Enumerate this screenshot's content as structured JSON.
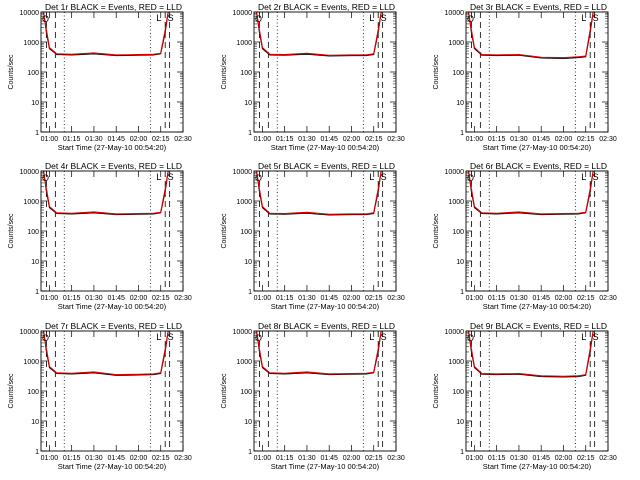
{
  "figure": {
    "background": "#ffffff",
    "axis_color": "#000000"
  },
  "colors": {
    "events": "#000000",
    "lld": "#d40000"
  },
  "x_ticks": [
    "01:00",
    "01:15",
    "01:30",
    "01:45",
    "02:00",
    "02:15",
    "02:30"
  ],
  "y_ticks": [
    "1",
    "10",
    "100",
    "1000",
    "10000"
  ],
  "xlabel": "Start Time (27-May-10 00:54:20)",
  "ylabel": "Counts/sec",
  "saa_labels": {
    "start": "L",
    "end": "S"
  },
  "orbit_marker": "O",
  "chart_data": [
    {
      "type": "line",
      "title": "Det 1r BLACK = Events, RED = LLD",
      "xlabel": "Start Time (27-May-10 00:54:20)",
      "ylabel": "Counts/sec",
      "y_scale": "log",
      "ylim": [
        1,
        10000
      ],
      "xlim": [
        "00:54:20",
        "02:30:00"
      ],
      "x_ticks": [
        "01:00",
        "01:15",
        "01:30",
        "01:45",
        "02:00",
        "02:15",
        "02:30"
      ],
      "y_ticks": [
        1,
        10,
        100,
        1000,
        10000
      ],
      "x": [
        "00:56",
        "00:58",
        "01:00",
        "01:05",
        "01:15",
        "01:30",
        "01:45",
        "02:00",
        "02:10",
        "02:15",
        "02:18",
        "02:20"
      ],
      "series": [
        {
          "name": "Events",
          "color": "#000000",
          "values": [
            10000,
            2000,
            600,
            380,
            370,
            400,
            350,
            360,
            370,
            400,
            2000,
            12000
          ]
        },
        {
          "name": "LLD",
          "color": "#d40000",
          "values": [
            12000,
            2500,
            650,
            400,
            390,
            430,
            370,
            380,
            390,
            420,
            2500,
            12000
          ]
        }
      ],
      "vlines_dashed": [
        "00:58",
        "01:04",
        "02:18",
        "02:21"
      ],
      "vlines_dotted": [
        "01:10",
        "02:08"
      ],
      "grid": false
    },
    {
      "type": "line",
      "title": "Det 2r BLACK = Events, RED = LLD",
      "xlabel": "Start Time (27-May-10 00:54:20)",
      "ylabel": "Counts/sec",
      "y_scale": "log",
      "ylim": [
        1,
        10000
      ],
      "xlim": [
        "00:54:20",
        "02:30:00"
      ],
      "x_ticks": [
        "01:00",
        "01:15",
        "01:30",
        "01:45",
        "02:00",
        "02:15",
        "02:30"
      ],
      "y_ticks": [
        1,
        10,
        100,
        1000,
        10000
      ],
      "x": [
        "00:56",
        "00:58",
        "01:00",
        "01:05",
        "01:15",
        "01:30",
        "01:45",
        "02:00",
        "02:10",
        "02:15",
        "02:18",
        "02:20"
      ],
      "series": [
        {
          "name": "Events",
          "color": "#000000",
          "values": [
            10000,
            2000,
            600,
            370,
            360,
            390,
            340,
            350,
            350,
            380,
            2000,
            12000
          ]
        },
        {
          "name": "LLD",
          "color": "#d40000",
          "values": [
            12000,
            2500,
            650,
            390,
            380,
            420,
            360,
            370,
            370,
            400,
            2500,
            12000
          ]
        }
      ],
      "vlines_dashed": [
        "00:58",
        "01:04",
        "02:18",
        "02:21"
      ],
      "vlines_dotted": [
        "01:10",
        "02:08"
      ],
      "grid": false
    },
    {
      "type": "line",
      "title": "Det 3r BLACK = Events, RED = LLD",
      "xlabel": "Start Time (27-May-10 00:54:20)",
      "ylabel": "Counts/sec",
      "y_scale": "log",
      "ylim": [
        1,
        10000
      ],
      "xlim": [
        "00:54:20",
        "02:30:00"
      ],
      "x_ticks": [
        "01:00",
        "01:15",
        "01:30",
        "01:45",
        "02:00",
        "02:15",
        "02:30"
      ],
      "y_ticks": [
        1,
        10,
        100,
        1000,
        10000
      ],
      "x": [
        "00:56",
        "00:58",
        "01:00",
        "01:05",
        "01:15",
        "01:30",
        "01:45",
        "02:00",
        "02:10",
        "02:15",
        "02:18",
        "02:20"
      ],
      "series": [
        {
          "name": "Events",
          "color": "#000000",
          "values": [
            10000,
            2000,
            600,
            360,
            350,
            360,
            290,
            280,
            300,
            320,
            2000,
            12000
          ]
        },
        {
          "name": "LLD",
          "color": "#d40000",
          "values": [
            12000,
            2500,
            650,
            380,
            370,
            380,
            310,
            300,
            320,
            340,
            2500,
            12000
          ]
        }
      ],
      "vlines_dashed": [
        "00:58",
        "01:04",
        "02:18",
        "02:21"
      ],
      "vlines_dotted": [
        "01:10",
        "02:08"
      ],
      "grid": false
    },
    {
      "type": "line",
      "title": "Det 4r BLACK = Events, RED = LLD",
      "xlabel": "Start Time (27-May-10 00:54:20)",
      "ylabel": "Counts/sec",
      "y_scale": "log",
      "ylim": [
        1,
        10000
      ],
      "xlim": [
        "00:54:20",
        "02:30:00"
      ],
      "x_ticks": [
        "01:00",
        "01:15",
        "01:30",
        "01:45",
        "02:00",
        "02:15",
        "02:30"
      ],
      "y_ticks": [
        1,
        10,
        100,
        1000,
        10000
      ],
      "x": [
        "00:56",
        "00:58",
        "01:00",
        "01:05",
        "01:15",
        "01:30",
        "01:45",
        "02:00",
        "02:10",
        "02:15",
        "02:18",
        "02:20"
      ],
      "series": [
        {
          "name": "Events",
          "color": "#000000",
          "values": [
            10000,
            2000,
            600,
            380,
            370,
            400,
            350,
            360,
            370,
            400,
            2000,
            12000
          ]
        },
        {
          "name": "LLD",
          "color": "#d40000",
          "values": [
            12000,
            2500,
            650,
            400,
            390,
            430,
            370,
            380,
            390,
            420,
            2500,
            12000
          ]
        }
      ],
      "vlines_dashed": [
        "00:58",
        "01:04",
        "02:18",
        "02:21"
      ],
      "vlines_dotted": [
        "01:10",
        "02:08"
      ],
      "grid": false
    },
    {
      "type": "line",
      "title": "Det 5r BLACK = Events, RED = LLD",
      "xlabel": "Start Time (27-May-10 00:54:20)",
      "ylabel": "Counts/sec",
      "y_scale": "log",
      "ylim": [
        1,
        10000
      ],
      "xlim": [
        "00:54:20",
        "02:30:00"
      ],
      "x_ticks": [
        "01:00",
        "01:15",
        "01:30",
        "01:45",
        "02:00",
        "02:15",
        "02:30"
      ],
      "y_ticks": [
        1,
        10,
        100,
        1000,
        10000
      ],
      "x": [
        "00:56",
        "00:58",
        "01:00",
        "01:05",
        "01:15",
        "01:30",
        "01:45",
        "02:00",
        "02:10",
        "02:15",
        "02:18",
        "02:20"
      ],
      "series": [
        {
          "name": "Events",
          "color": "#000000",
          "values": [
            10000,
            2000,
            600,
            370,
            360,
            390,
            340,
            350,
            350,
            380,
            2000,
            12000
          ]
        },
        {
          "name": "LLD",
          "color": "#d40000",
          "values": [
            12000,
            2500,
            650,
            390,
            380,
            420,
            360,
            370,
            370,
            400,
            2500,
            12000
          ]
        }
      ],
      "vlines_dashed": [
        "00:58",
        "01:04",
        "02:18",
        "02:21"
      ],
      "vlines_dotted": [
        "01:10",
        "02:08"
      ],
      "grid": false
    },
    {
      "type": "line",
      "title": "Det 6r BLACK = Events, RED = LLD",
      "xlabel": "Start Time (27-May-10 00:54:20)",
      "ylabel": "Counts/sec",
      "y_scale": "log",
      "ylim": [
        1,
        10000
      ],
      "xlim": [
        "00:54:20",
        "02:30:00"
      ],
      "x_ticks": [
        "01:00",
        "01:15",
        "01:30",
        "01:45",
        "02:00",
        "02:15",
        "02:30"
      ],
      "y_ticks": [
        1,
        10,
        100,
        1000,
        10000
      ],
      "x": [
        "00:56",
        "00:58",
        "01:00",
        "01:05",
        "01:15",
        "01:30",
        "01:45",
        "02:00",
        "02:10",
        "02:15",
        "02:18",
        "02:20"
      ],
      "series": [
        {
          "name": "Events",
          "color": "#000000",
          "values": [
            10000,
            2000,
            600,
            380,
            370,
            400,
            350,
            360,
            370,
            400,
            2000,
            12000
          ]
        },
        {
          "name": "LLD",
          "color": "#d40000",
          "values": [
            12000,
            2500,
            650,
            400,
            390,
            430,
            370,
            380,
            390,
            420,
            2500,
            12000
          ]
        }
      ],
      "vlines_dashed": [
        "00:58",
        "01:04",
        "02:18",
        "02:21"
      ],
      "vlines_dotted": [
        "01:10",
        "02:08"
      ],
      "grid": false
    },
    {
      "type": "line",
      "title": "Det 7r BLACK = Events, RED = LLD",
      "xlabel": "Start Time (27-May-10 00:54:20)",
      "ylabel": "Counts/sec",
      "y_scale": "log",
      "ylim": [
        1,
        10000
      ],
      "xlim": [
        "00:54:20",
        "02:30:00"
      ],
      "x_ticks": [
        "01:00",
        "01:15",
        "01:30",
        "01:45",
        "02:00",
        "02:15",
        "02:30"
      ],
      "y_ticks": [
        1,
        10,
        100,
        1000,
        10000
      ],
      "x": [
        "00:56",
        "00:58",
        "01:00",
        "01:05",
        "01:15",
        "01:30",
        "01:45",
        "02:00",
        "02:10",
        "02:15",
        "02:18",
        "02:20"
      ],
      "series": [
        {
          "name": "Events",
          "color": "#000000",
          "values": [
            10000,
            2000,
            600,
            380,
            370,
            400,
            330,
            340,
            350,
            380,
            2000,
            12000
          ]
        },
        {
          "name": "LLD",
          "color": "#d40000",
          "values": [
            12000,
            2500,
            650,
            400,
            390,
            430,
            350,
            360,
            370,
            400,
            2500,
            12000
          ]
        }
      ],
      "vlines_dashed": [
        "00:58",
        "01:04",
        "02:18",
        "02:21"
      ],
      "vlines_dotted": [
        "01:10",
        "02:08"
      ],
      "grid": false
    },
    {
      "type": "line",
      "title": "Det 8r BLACK = Events, RED = LLD",
      "xlabel": "Start Time (27-May-10 00:54:20)",
      "ylabel": "Counts/sec",
      "y_scale": "log",
      "ylim": [
        1,
        10000
      ],
      "xlim": [
        "00:54:20",
        "02:30:00"
      ],
      "x_ticks": [
        "01:00",
        "01:15",
        "01:30",
        "01:45",
        "02:00",
        "02:15",
        "02:30"
      ],
      "y_ticks": [
        1,
        10,
        100,
        1000,
        10000
      ],
      "x": [
        "00:56",
        "00:58",
        "01:00",
        "01:05",
        "01:15",
        "01:30",
        "01:45",
        "02:00",
        "02:10",
        "02:15",
        "02:18",
        "02:20"
      ],
      "series": [
        {
          "name": "Events",
          "color": "#000000",
          "values": [
            10000,
            2000,
            600,
            380,
            370,
            400,
            350,
            360,
            370,
            400,
            2000,
            12000
          ]
        },
        {
          "name": "LLD",
          "color": "#d40000",
          "values": [
            12000,
            2500,
            650,
            400,
            390,
            430,
            370,
            380,
            390,
            420,
            2500,
            12000
          ]
        }
      ],
      "vlines_dashed": [
        "00:58",
        "01:04",
        "02:18",
        "02:21"
      ],
      "vlines_dotted": [
        "01:10",
        "02:08"
      ],
      "grid": false
    },
    {
      "type": "line",
      "title": "Det 9r BLACK = Events, RED = LLD",
      "xlabel": "Start Time (27-May-10 00:54:20)",
      "ylabel": "Counts/sec",
      "y_scale": "log",
      "ylim": [
        1,
        10000
      ],
      "xlim": [
        "00:54:20",
        "02:30:00"
      ],
      "x_ticks": [
        "01:00",
        "01:15",
        "01:30",
        "01:45",
        "02:00",
        "02:15",
        "02:30"
      ],
      "y_ticks": [
        1,
        10,
        100,
        1000,
        10000
      ],
      "x": [
        "00:56",
        "00:58",
        "01:00",
        "01:05",
        "01:15",
        "01:30",
        "01:45",
        "02:00",
        "02:10",
        "02:15",
        "02:18",
        "02:20"
      ],
      "series": [
        {
          "name": "Events",
          "color": "#000000",
          "values": [
            10000,
            2000,
            600,
            360,
            350,
            360,
            300,
            290,
            300,
            330,
            2000,
            12000
          ]
        },
        {
          "name": "LLD",
          "color": "#d40000",
          "values": [
            12000,
            2500,
            650,
            380,
            370,
            380,
            320,
            310,
            320,
            350,
            2500,
            12000
          ]
        }
      ],
      "vlines_dashed": [
        "00:58",
        "01:04",
        "02:18",
        "02:21"
      ],
      "vlines_dotted": [
        "01:10",
        "02:08"
      ],
      "grid": false
    }
  ]
}
